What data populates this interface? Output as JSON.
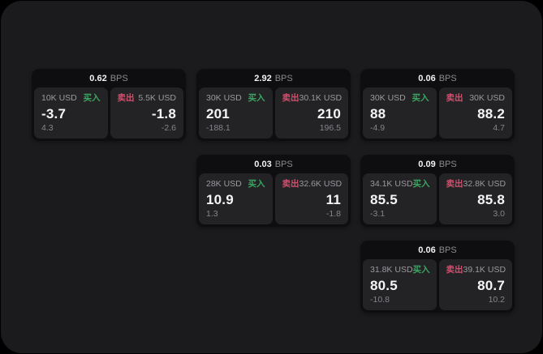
{
  "theme": {
    "page_bg": "#000000",
    "panel_bg": "#1b1b1d",
    "card_bg": "#0e0e10",
    "pane_bg": "#232326",
    "text_primary": "#f5f5f5",
    "text_muted": "#9a9a9e",
    "text_sub": "#85858a",
    "buy_color": "#3ca561",
    "sell_color": "#d2506e"
  },
  "labels": {
    "bps": "BPS",
    "buy": "买入",
    "sell": "卖出"
  },
  "cards": [
    {
      "bps": "0.62",
      "buy": {
        "size": "10K USD",
        "value": "-3.7",
        "sub": "4.3"
      },
      "sell": {
        "size": "5.5K USD",
        "value": "-1.8",
        "sub": "-2.6"
      }
    },
    {
      "bps": "2.92",
      "buy": {
        "size": "30K USD",
        "value": "201",
        "sub": "-188.1"
      },
      "sell": {
        "size": "30.1K USD",
        "value": "210",
        "sub": "196.5"
      }
    },
    {
      "bps": "0.06",
      "buy": {
        "size": "30K USD",
        "value": "88",
        "sub": "-4.9"
      },
      "sell": {
        "size": "30K USD",
        "value": "88.2",
        "sub": "4.7"
      }
    },
    {
      "bps": "0.03",
      "buy": {
        "size": "28K USD",
        "value": "10.9",
        "sub": "1.3"
      },
      "sell": {
        "size": "32.6K USD",
        "value": "11",
        "sub": "-1.8"
      }
    },
    {
      "bps": "0.09",
      "buy": {
        "size": "34.1K USD",
        "value": "85.5",
        "sub": "-3.1"
      },
      "sell": {
        "size": "32.8K USD",
        "value": "85.8",
        "sub": "3.0"
      }
    },
    {
      "bps": "0.06",
      "buy": {
        "size": "31.8K USD",
        "value": "80.5",
        "sub": "-10.8"
      },
      "sell": {
        "size": "39.1K USD",
        "value": "80.7",
        "sub": "10.2"
      }
    }
  ]
}
